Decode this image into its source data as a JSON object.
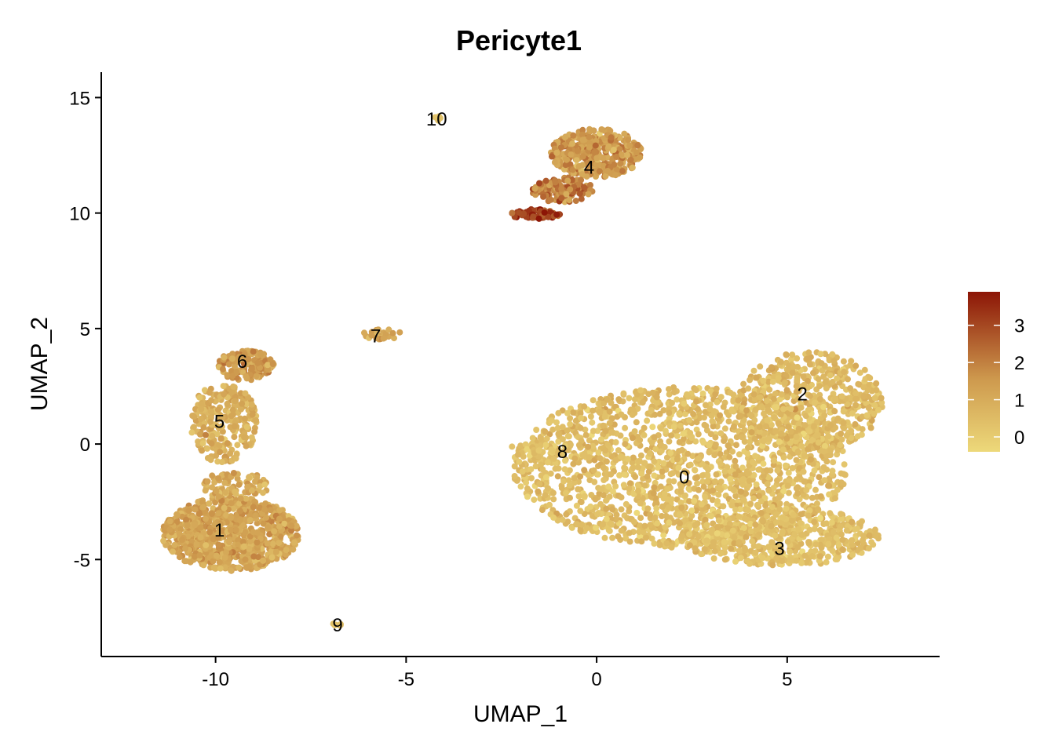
{
  "chart_data": {
    "type": "scatter",
    "title": "Pericyte1",
    "xlabel": "UMAP_1",
    "ylabel": "UMAP_2",
    "xlim": [
      -13,
      9
    ],
    "ylim": [
      -9.2,
      16.1
    ],
    "xticks": [
      -10,
      -5,
      0,
      5
    ],
    "yticks": [
      -5,
      0,
      5,
      10,
      15
    ],
    "xtick_labels": [
      "-10",
      "-5",
      "0",
      "5"
    ],
    "ytick_labels": [
      "-5",
      "0",
      "5",
      "10",
      "15"
    ],
    "color_scale": {
      "low_color": "#EDD97A",
      "mid_color": "#CE9A4E",
      "high_color": "#8C1506",
      "min": -0.4,
      "max": 3.9,
      "ticks": [
        0,
        1,
        2,
        3
      ],
      "tick_labels": [
        "0",
        "1",
        "2",
        "3"
      ],
      "placement": "right"
    },
    "clusters": [
      {
        "label": "0",
        "x": 2.3,
        "y": -1.4,
        "expr": 0.45
      },
      {
        "label": "1",
        "x": -9.9,
        "y": -3.7,
        "expr": 1.2
      },
      {
        "label": "2",
        "x": 5.4,
        "y": 2.2,
        "expr": 0.6
      },
      {
        "label": "3",
        "x": 4.8,
        "y": -4.5,
        "expr": 0.45
      },
      {
        "label": "4",
        "x": -0.2,
        "y": 12.0,
        "expr": 1.6
      },
      {
        "label": "5",
        "x": -9.9,
        "y": 1.0,
        "expr": 0.9
      },
      {
        "label": "6",
        "x": -9.3,
        "y": 3.6,
        "expr": 1.3
      },
      {
        "label": "7",
        "x": -5.8,
        "y": 4.7,
        "expr": 1.1
      },
      {
        "label": "8",
        "x": -0.9,
        "y": -0.3,
        "expr": 0.4
      },
      {
        "label": "9",
        "x": -6.8,
        "y": -7.8,
        "expr": 0.3
      },
      {
        "label": "10",
        "x": -4.2,
        "y": 14.1,
        "expr": 0.2
      }
    ]
  }
}
